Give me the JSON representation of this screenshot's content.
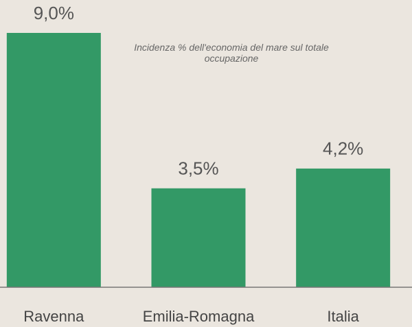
{
  "chart_data": {
    "type": "bar",
    "title": "Incidenza % dell'economia del mare sul totale occupazione",
    "categories": [
      "Ravenna",
      "Emilia-Romagna",
      "Italia"
    ],
    "values": [
      9.0,
      3.5,
      4.2
    ],
    "value_labels": [
      "9,0%",
      "3,5%",
      "4,2%"
    ],
    "color": "#339966"
  }
}
